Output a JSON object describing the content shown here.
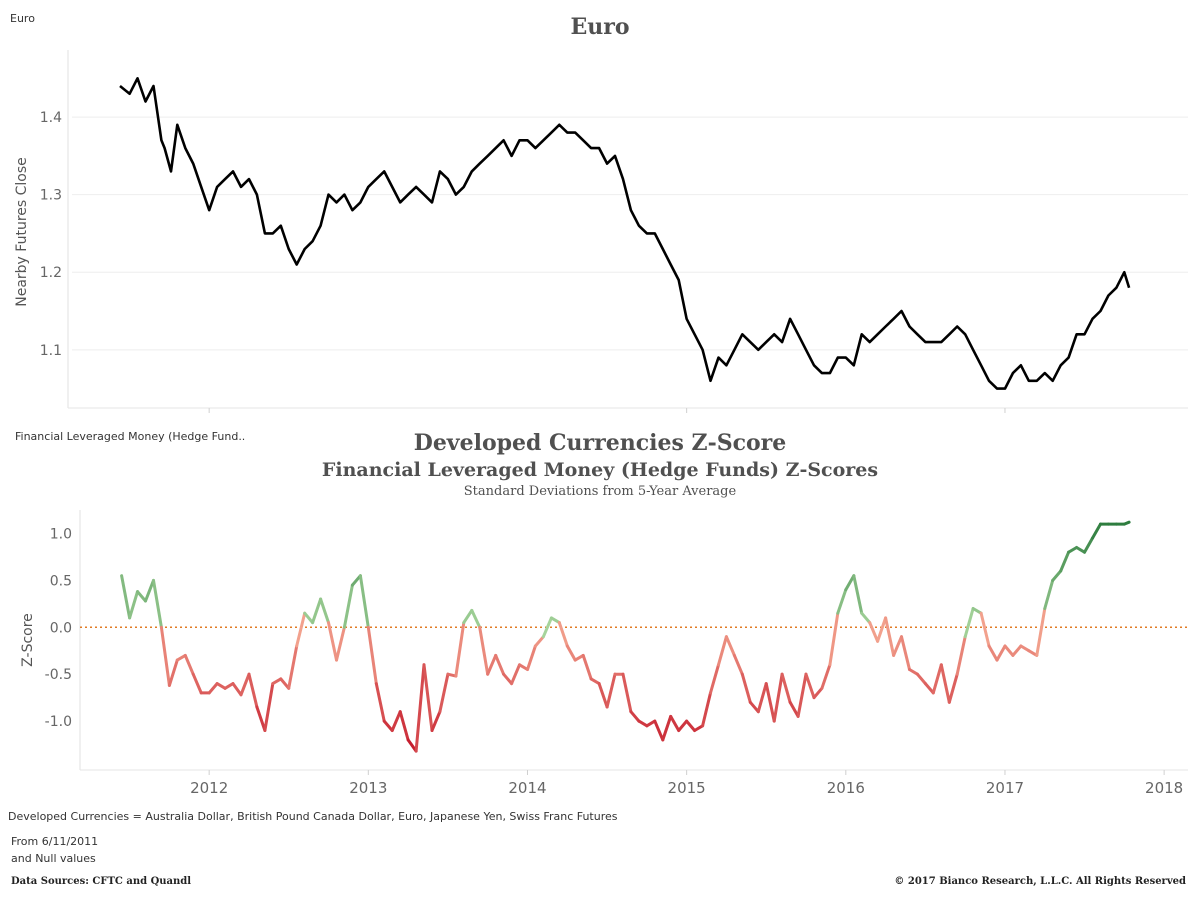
{
  "top_left_label": "Euro",
  "middle_left_label": "Financial Leveraged Money (Hedge Fund..",
  "titles": {
    "euro": "Euro",
    "zscore_main": "Developed Currencies Z-Score",
    "zscore_sub": "Financial Leveraged Money (Hedge Funds) Z-Scores",
    "zscore_sub2": "Standard Deviations from 5-Year Average"
  },
  "footnotes": {
    "currencies": "Developed Currencies = Australia Dollar, British Pound Canada Dollar, Euro, Japanese Yen, Swiss Franc Futures",
    "from": "From 6/11/2011",
    "nulls": "and Null values",
    "sources": "Data Sources: CFTC and Quandl",
    "copyright": "© 2017 Bianco Research, L.L.C. All Rights Reserved"
  },
  "colors": {
    "price_line": "#000000",
    "zero_line": "#e07b24",
    "negative_deep": "#c51b2c",
    "negative_light": "#f3a48f",
    "positive_light": "#a6d49b",
    "positive_deep": "#2e7d3f",
    "grid": "#eeeeee"
  },
  "chart_data": [
    {
      "type": "line",
      "title": "Euro",
      "xlabel": "",
      "ylabel": "Nearby Futures Close",
      "ylim": [
        1.025,
        1.48
      ],
      "yticks": [
        "1.1",
        "1.2",
        "1.3",
        "1.4"
      ],
      "grid": true,
      "series": [
        {
          "x": [
            2011.44,
            2011.5,
            2011.55,
            2011.6,
            2011.65,
            2011.7,
            2011.72,
            2011.76,
            2011.8,
            2011.85,
            2011.9,
            2011.95,
            2012.0,
            2012.05,
            2012.1,
            2012.15,
            2012.2,
            2012.25,
            2012.3,
            2012.35,
            2012.4,
            2012.45,
            2012.5,
            2012.55,
            2012.6,
            2012.65,
            2012.7,
            2012.75,
            2012.8,
            2012.85,
            2012.9,
            2012.95,
            2013.0,
            2013.05,
            2013.1,
            2013.15,
            2013.2,
            2013.25,
            2013.3,
            2013.35,
            2013.4,
            2013.45,
            2013.5,
            2013.55,
            2013.6,
            2013.65,
            2013.7,
            2013.75,
            2013.8,
            2013.85,
            2013.9,
            2013.95,
            2014.0,
            2014.05,
            2014.1,
            2014.15,
            2014.2,
            2014.25,
            2014.3,
            2014.35,
            2014.4,
            2014.45,
            2014.5,
            2014.55,
            2014.6,
            2014.65,
            2014.7,
            2014.75,
            2014.8,
            2014.85,
            2014.9,
            2014.95,
            2015.0,
            2015.05,
            2015.1,
            2015.15,
            2015.2,
            2015.25,
            2015.3,
            2015.35,
            2015.4,
            2015.45,
            2015.5,
            2015.55,
            2015.6,
            2015.65,
            2015.7,
            2015.75,
            2015.8,
            2015.85,
            2015.9,
            2015.95,
            2016.0,
            2016.05,
            2016.1,
            2016.15,
            2016.2,
            2016.25,
            2016.3,
            2016.35,
            2016.4,
            2016.45,
            2016.5,
            2016.55,
            2016.6,
            2016.65,
            2016.7,
            2016.75,
            2016.8,
            2016.85,
            2016.9,
            2016.95,
            2017.0,
            2017.05,
            2017.1,
            2017.15,
            2017.2,
            2017.25,
            2017.3,
            2017.35,
            2017.4,
            2017.45,
            2017.5,
            2017.55,
            2017.6,
            2017.65,
            2017.7,
            2017.75,
            2017.78
          ],
          "y": [
            1.44,
            1.43,
            1.45,
            1.42,
            1.44,
            1.37,
            1.36,
            1.33,
            1.39,
            1.36,
            1.34,
            1.31,
            1.28,
            1.31,
            1.32,
            1.33,
            1.31,
            1.32,
            1.3,
            1.25,
            1.25,
            1.26,
            1.23,
            1.21,
            1.23,
            1.24,
            1.26,
            1.3,
            1.29,
            1.3,
            1.28,
            1.29,
            1.31,
            1.32,
            1.33,
            1.31,
            1.29,
            1.3,
            1.31,
            1.3,
            1.29,
            1.33,
            1.32,
            1.3,
            1.31,
            1.33,
            1.34,
            1.35,
            1.36,
            1.37,
            1.35,
            1.37,
            1.37,
            1.36,
            1.37,
            1.38,
            1.39,
            1.38,
            1.38,
            1.37,
            1.36,
            1.36,
            1.34,
            1.35,
            1.32,
            1.28,
            1.26,
            1.25,
            1.25,
            1.23,
            1.21,
            1.19,
            1.14,
            1.12,
            1.1,
            1.06,
            1.09,
            1.08,
            1.1,
            1.12,
            1.11,
            1.1,
            1.11,
            1.12,
            1.11,
            1.14,
            1.12,
            1.1,
            1.08,
            1.07,
            1.07,
            1.09,
            1.09,
            1.08,
            1.12,
            1.11,
            1.12,
            1.13,
            1.14,
            1.15,
            1.13,
            1.12,
            1.11,
            1.11,
            1.11,
            1.12,
            1.13,
            1.12,
            1.1,
            1.08,
            1.06,
            1.05,
            1.05,
            1.07,
            1.08,
            1.06,
            1.06,
            1.07,
            1.06,
            1.08,
            1.09,
            1.12,
            1.12,
            1.14,
            1.15,
            1.17,
            1.18,
            1.2,
            1.18
          ]
        }
      ]
    },
    {
      "type": "line",
      "title": "Developed Currencies Z-Score",
      "subtitle": "Financial Leveraged Money (Hedge Funds) Z-Scores",
      "xlabel": "",
      "ylabel": "Z-Score",
      "ylim": [
        -1.5,
        1.25
      ],
      "yticks": [
        "-1.0",
        "-0.5",
        "0.0",
        "0.5",
        "1.0"
      ],
      "xticks": [
        "2012",
        "2013",
        "2014",
        "2015",
        "2016",
        "2017",
        "2018"
      ],
      "reference_line": 0.0,
      "grid": false,
      "series": [
        {
          "x": [
            2011.45,
            2011.5,
            2011.55,
            2011.6,
            2011.65,
            2011.7,
            2011.75,
            2011.8,
            2011.85,
            2011.9,
            2011.95,
            2012.0,
            2012.05,
            2012.1,
            2012.15,
            2012.2,
            2012.25,
            2012.3,
            2012.35,
            2012.4,
            2012.45,
            2012.5,
            2012.55,
            2012.6,
            2012.65,
            2012.7,
            2012.75,
            2012.8,
            2012.85,
            2012.9,
            2012.95,
            2013.0,
            2013.05,
            2013.1,
            2013.15,
            2013.2,
            2013.25,
            2013.3,
            2013.35,
            2013.4,
            2013.45,
            2013.5,
            2013.55,
            2013.6,
            2013.65,
            2013.7,
            2013.75,
            2013.8,
            2013.85,
            2013.9,
            2013.95,
            2014.0,
            2014.05,
            2014.1,
            2014.15,
            2014.2,
            2014.25,
            2014.3,
            2014.35,
            2014.4,
            2014.45,
            2014.5,
            2014.55,
            2014.6,
            2014.65,
            2014.7,
            2014.75,
            2014.8,
            2014.85,
            2014.9,
            2014.95,
            2015.0,
            2015.05,
            2015.1,
            2015.15,
            2015.2,
            2015.25,
            2015.3,
            2015.35,
            2015.4,
            2015.45,
            2015.5,
            2015.55,
            2015.6,
            2015.65,
            2015.7,
            2015.75,
            2015.8,
            2015.85,
            2015.9,
            2015.95,
            2016.0,
            2016.05,
            2016.1,
            2016.15,
            2016.2,
            2016.25,
            2016.3,
            2016.35,
            2016.4,
            2016.45,
            2016.5,
            2016.55,
            2016.6,
            2016.65,
            2016.7,
            2016.75,
            2016.8,
            2016.85,
            2016.9,
            2016.95,
            2017.0,
            2017.05,
            2017.1,
            2017.15,
            2017.2,
            2017.25,
            2017.3,
            2017.35,
            2017.4,
            2017.45,
            2017.5,
            2017.55,
            2017.6,
            2017.65,
            2017.7,
            2017.75,
            2017.78
          ],
          "y": [
            0.55,
            0.1,
            0.38,
            0.28,
            0.5,
            0.0,
            -0.62,
            -0.35,
            -0.3,
            -0.5,
            -0.7,
            -0.7,
            -0.6,
            -0.65,
            -0.6,
            -0.72,
            -0.5,
            -0.85,
            -1.1,
            -0.6,
            -0.55,
            -0.65,
            -0.2,
            0.15,
            0.05,
            0.3,
            0.05,
            -0.35,
            0.0,
            0.45,
            0.55,
            0.0,
            -0.6,
            -1.0,
            -1.1,
            -0.9,
            -1.2,
            -1.32,
            -0.4,
            -1.1,
            -0.9,
            -0.5,
            -0.52,
            0.05,
            0.18,
            0.0,
            -0.5,
            -0.3,
            -0.5,
            -0.6,
            -0.4,
            -0.45,
            -0.2,
            -0.1,
            0.1,
            0.05,
            -0.2,
            -0.35,
            -0.3,
            -0.55,
            -0.6,
            -0.85,
            -0.5,
            -0.5,
            -0.9,
            -1.0,
            -1.05,
            -1.0,
            -1.2,
            -0.95,
            -1.1,
            -1.0,
            -1.1,
            -1.05,
            -0.7,
            -0.4,
            -0.1,
            -0.3,
            -0.5,
            -0.8,
            -0.9,
            -0.6,
            -1.0,
            -0.5,
            -0.8,
            -0.95,
            -0.5,
            -0.75,
            -0.65,
            -0.4,
            0.15,
            0.4,
            0.55,
            0.15,
            0.05,
            -0.15,
            0.1,
            -0.3,
            -0.1,
            -0.45,
            -0.5,
            -0.6,
            -0.7,
            -0.4,
            -0.8,
            -0.5,
            -0.1,
            0.2,
            0.15,
            -0.2,
            -0.35,
            -0.2,
            -0.3,
            -0.2,
            -0.25,
            -0.3,
            0.2,
            0.5,
            0.6,
            0.8,
            0.85,
            0.8,
            0.95,
            1.1,
            1.1,
            1.1,
            1.1,
            1.12
          ]
        }
      ]
    }
  ]
}
